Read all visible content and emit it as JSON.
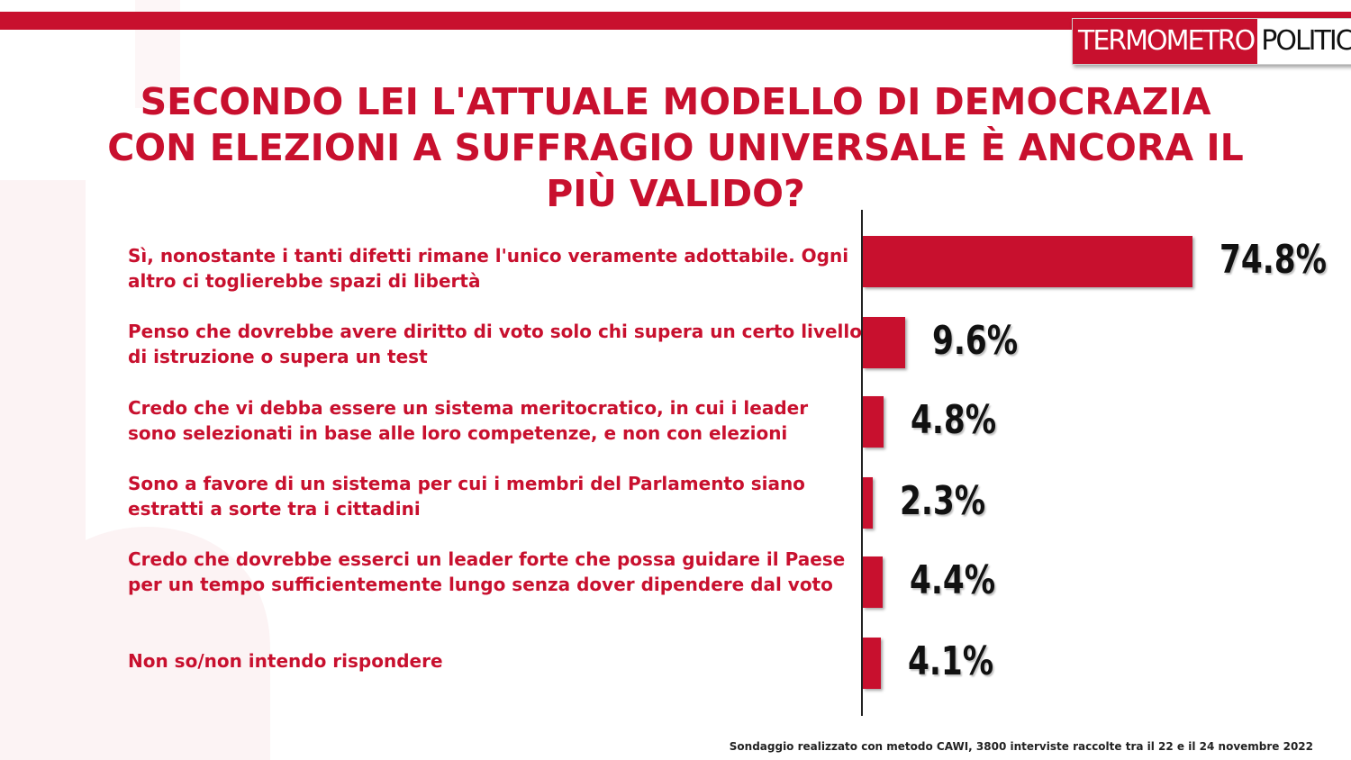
{
  "header": {
    "accent_color": "#c8102e",
    "logo": {
      "part1": "TERMOMETRO",
      "part2": "POLITICO"
    }
  },
  "title": "SECONDO LEI L'ATTUALE MODELLO DI DEMOCRAZIA CON ELEZIONI A SUFFRAGIO UNIVERSALE È ANCORA IL PIÙ VALIDO?",
  "footer": "Sondaggio realizzato con metodo CAWI, 3800 interviste raccolte tra il 22 e il 24 novembre 2022",
  "chart_data": {
    "type": "bar",
    "orientation": "horizontal",
    "title": "SECONDO LEI L'ATTUALE MODELLO DI DEMOCRAZIA CON ELEZIONI A SUFFRAGIO UNIVERSALE È ANCORA IL PIÙ VALIDO?",
    "categories": [
      "Sì, nonostante i tanti difetti rimane l'unico veramente adottabile. Ogni altro ci toglierebbe spazi di libertà",
      "Penso che dovrebbe avere diritto di voto solo chi supera un certo livello di istruzione o supera un test",
      "Credo che vi debba essere un sistema meritocratico, in cui i leader sono selezionati in base alle loro competenze, e non con elezioni",
      "Sono a favore di un sistema per cui i membri del Parlamento siano estratti a sorte tra i cittadini",
      "Credo che dovrebbe esserci un leader forte che possa guidare il Paese per un tempo sufficientemente lungo senza dover dipendere dal voto",
      "Non so/non intendo rispondere"
    ],
    "values": [
      74.8,
      9.6,
      4.8,
      2.3,
      4.4,
      4.1
    ],
    "value_labels": [
      "74.8%",
      "9.6%",
      "4.8%",
      "2.3%",
      "4.4%",
      "4.1%"
    ],
    "unit": "%",
    "xlim": [
      0,
      100
    ],
    "bar_color": "#c8102e",
    "grid": false,
    "legend": "none"
  }
}
